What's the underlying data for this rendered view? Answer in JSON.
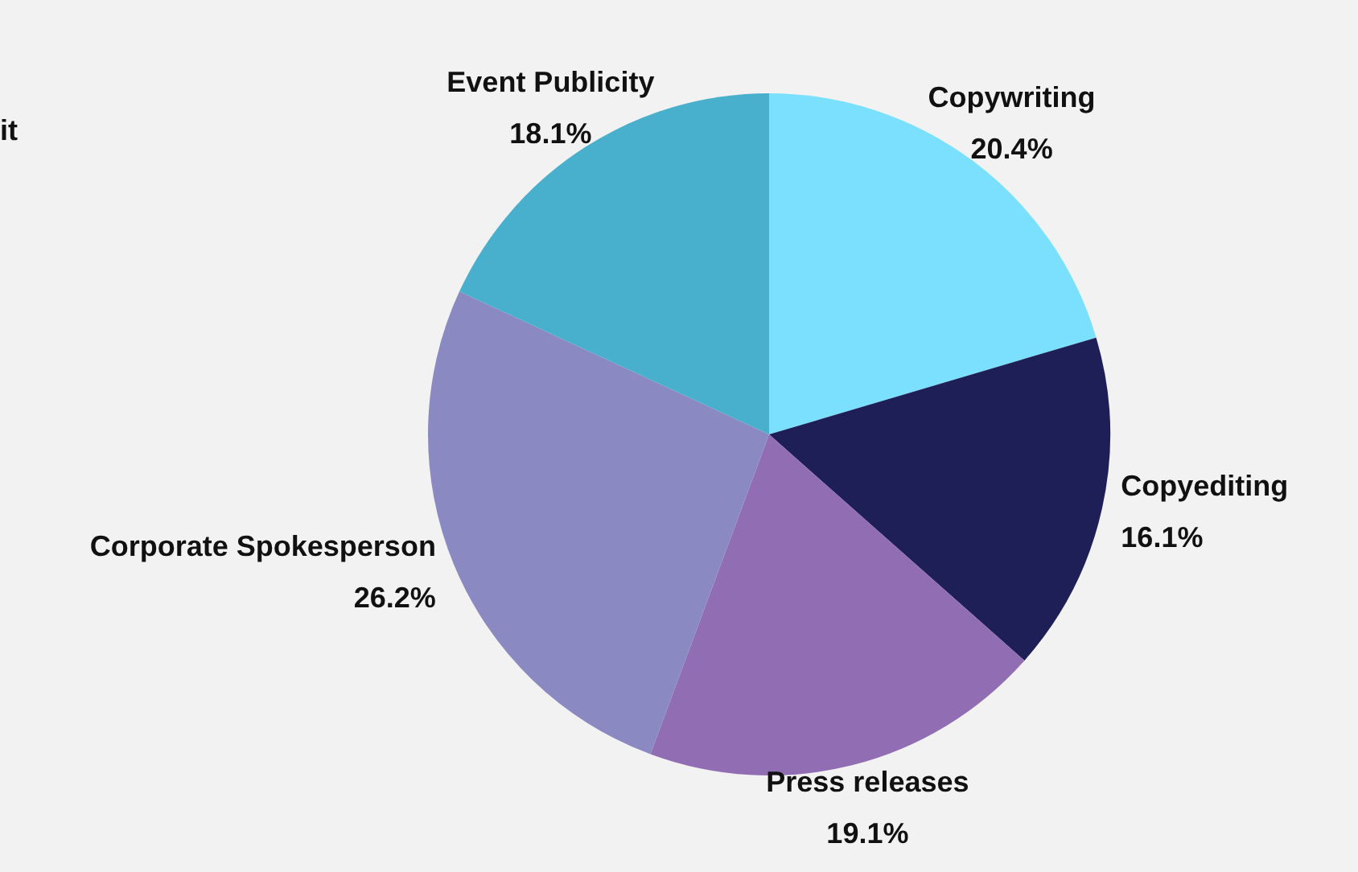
{
  "chart_data": {
    "type": "pie",
    "categories": [
      "Copywriting",
      "Copyediting",
      "Press releases",
      "Corporate Spokesperson",
      "Event Publicity"
    ],
    "values": [
      20.4,
      16.1,
      19.1,
      26.2,
      18.1
    ],
    "colors": [
      "#7ae0fe",
      "#1e1f57",
      "#916eb3",
      "#8a89c2",
      "#48afcc"
    ],
    "value_labels": [
      "20.4%",
      "16.1%",
      "19.1%",
      "26.2%",
      "18.1%"
    ],
    "annotations": [
      "it"
    ],
    "legend": false
  }
}
